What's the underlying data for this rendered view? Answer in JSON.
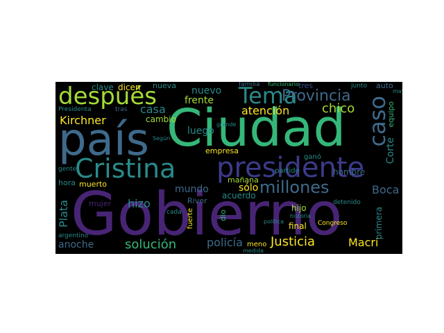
{
  "wordcloud": {
    "background": "#000000",
    "palette": {
      "purple": "#482475",
      "indigo": "#3b4f8a",
      "blue": "#3e6a8c",
      "teal": "#2a8a8a",
      "green": "#35b779",
      "lime": "#a5db36",
      "yellow": "#fde725"
    },
    "words": {
      "gobierno": "Gobierno",
      "ciudad": "Ciudad",
      "pais": "país",
      "presidente": "presidente",
      "cristina": "Cristina",
      "despues": "después",
      "tema": "Tema",
      "provincia": "Provincia",
      "caso": "caso",
      "millones": "millones",
      "justicia": "Justicia",
      "macri": "Macri",
      "solucion": "solución",
      "policia": "policía",
      "kirchner": "Kirchner",
      "chico": "chico",
      "atencion": "atención",
      "anoche": "anoche",
      "plata": "Plata",
      "boca": "Boca",
      "nuevo": "nuevo",
      "frente": "frente",
      "casa": "casa",
      "luego": "luego",
      "mundo": "mundo",
      "hizo": "hizo",
      "solo": "sólo",
      "corte": "Corte",
      "equipo": "equipo",
      "auto": "auto",
      "hombre": "hombre",
      "empresa": "empresa",
      "river": "River",
      "manana": "mañana",
      "acuerdo": "acuerdo",
      "final": "final",
      "hijo": "hijo",
      "primera": "primera",
      "partido": "partido",
      "gano": "ganó",
      "clave": "clave",
      "dicen": "dicen",
      "nueva": "nueva",
      "cambio": "cambio",
      "muerto": "muerto",
      "hora": "hora",
      "mujer": "mujer",
      "presidenta": "Presidenta",
      "congreso": "Congreso",
      "tres": "tres",
      "detenido": "detenido",
      "fuerte": "fuerte",
      "dio": "dio",
      "argentino": "argentino",
      "gente": "gente",
      "meno": "meno",
      "medida": "medida",
      "tras": "tras",
      "segun": "Según",
      "caso_small": "caso",
      "junto": "junto",
      "cada": "cada",
      "grande": "grande",
      "familia": "familia",
      "funcionario": "funcionario",
      "mayor": "mayor",
      "politica": "política",
      "historia": "historia"
    }
  }
}
